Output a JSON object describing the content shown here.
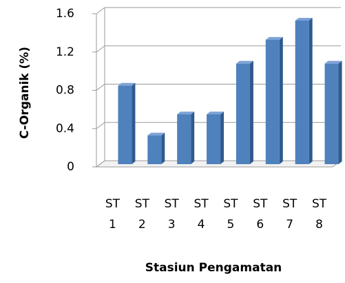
{
  "chart_data": {
    "type": "bar",
    "y_label": "C-Organik  (%)",
    "x_label": "Stasiun Pengamatan",
    "categories": [
      "ST 1",
      "ST 2",
      "ST 3",
      "ST 4",
      "ST 5",
      "ST 6",
      "ST 7",
      "ST 8"
    ],
    "values": [
      0.82,
      0.3,
      0.52,
      0.52,
      1.05,
      1.3,
      1.5,
      1.05
    ],
    "color": "#4f81bd",
    "ylim": [
      0,
      1.6
    ],
    "yticks": [
      0,
      0.4,
      0.8,
      1.2,
      1.6
    ],
    "grid": true
  }
}
